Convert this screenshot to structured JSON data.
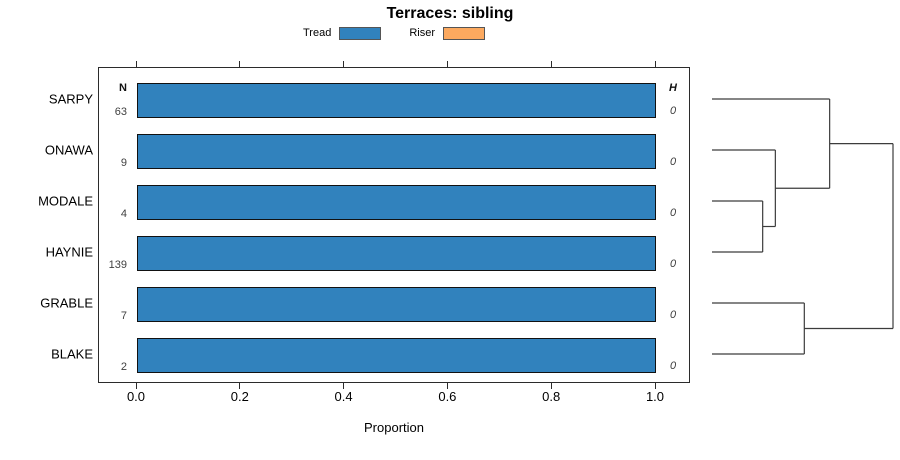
{
  "title": "Terraces: sibling",
  "legend": {
    "items": [
      {
        "label": "Tread",
        "color": "#3182bd"
      },
      {
        "label": "Riser",
        "color": "#fca95f"
      }
    ]
  },
  "chart_data": {
    "type": "bar",
    "orientation": "horizontal",
    "title": "Terraces: sibling",
    "categories": [
      "SARPY",
      "ONAWA",
      "MODALE",
      "HAYNIE",
      "GRABLE",
      "BLAKE"
    ],
    "series": [
      {
        "name": "Tread",
        "color": "#3182bd",
        "values": [
          1.0,
          1.0,
          1.0,
          1.0,
          1.0,
          1.0
        ]
      },
      {
        "name": "Riser",
        "color": "#fca95f",
        "values": [
          0,
          0,
          0,
          0,
          0,
          0
        ]
      }
    ],
    "columns": {
      "n": {
        "header": "N",
        "values": [
          "63",
          "9",
          "4",
          "139",
          "7",
          "2"
        ]
      },
      "h": {
        "header": "H",
        "values": [
          "0",
          "0",
          "0",
          "0",
          "0",
          "0"
        ]
      }
    },
    "xlabel": "Proportion",
    "xlim": [
      0,
      1
    ],
    "xticks": [
      "0.0",
      "0.2",
      "0.4",
      "0.6",
      "0.8",
      "1.0"
    ],
    "grid": false,
    "legend_position": "top",
    "dendrogram": {
      "orientation": "right",
      "leaf_order": [
        "SARPY",
        "ONAWA",
        "MODALE",
        "HAYNIE",
        "GRABLE",
        "BLAKE"
      ],
      "tree": {
        "height": 1.0,
        "children": [
          {
            "height": 0.65,
            "children": [
              {
                "leaf": "SARPY"
              },
              {
                "height": 0.35,
                "children": [
                  {
                    "leaf": "ONAWA"
                  },
                  {
                    "height": 0.28,
                    "children": [
                      {
                        "leaf": "MODALE"
                      },
                      {
                        "leaf": "HAYNIE"
                      }
                    ]
                  }
                ]
              }
            ]
          },
          {
            "height": 0.51,
            "children": [
              {
                "leaf": "GRABLE"
              },
              {
                "leaf": "BLAKE"
              }
            ]
          }
        ]
      }
    }
  }
}
